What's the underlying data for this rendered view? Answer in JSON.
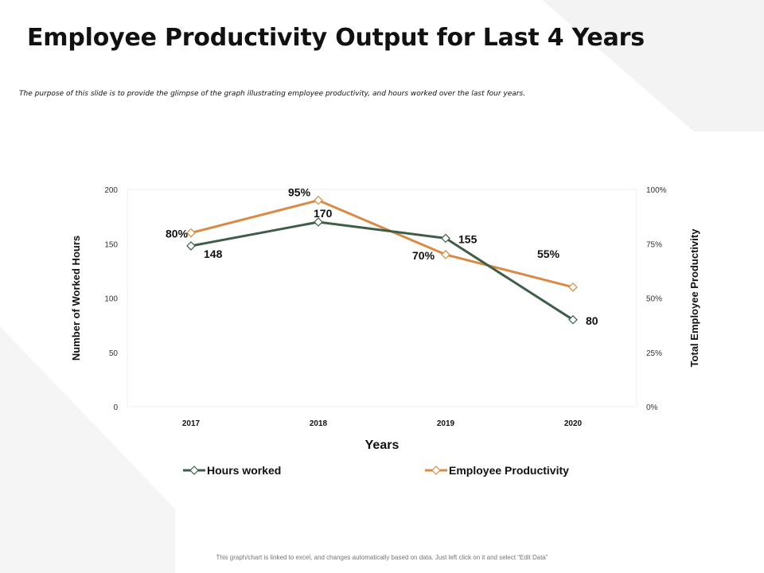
{
  "slide": {
    "title": "Employee Productivity Output for Last 4 Years",
    "subtitle": "The purpose of this slide is to provide the glimpse of the graph illustrating employee productivity, and hours worked over the last four years.",
    "footer_note": "This graph/chart is linked to excel, and changes automatically based on data. Just left click on it and select “Edit Data”"
  },
  "chart_data": {
    "type": "line",
    "categories": [
      "2017",
      "2018",
      "2019",
      "2020"
    ],
    "xlabel": "Years",
    "ylabel": "Number of Worked Hours",
    "y2label": "Total Employee Productivity",
    "ylim": [
      0,
      200
    ],
    "y2lim": [
      0,
      100
    ],
    "y_ticks": [
      {
        "value": 200,
        "label": "200"
      },
      {
        "value": 150,
        "label": "150"
      },
      {
        "value": 100,
        "label": "100"
      },
      {
        "value": 50,
        "label": "50"
      },
      {
        "value": 0,
        "label": "0"
      }
    ],
    "y2_ticks": [
      {
        "value": 100,
        "label": "100%"
      },
      {
        "value": 75,
        "label": "75%"
      },
      {
        "value": 50,
        "label": "50%"
      },
      {
        "value": 25,
        "label": "25%"
      },
      {
        "value": 0,
        "label": "0%"
      }
    ],
    "legend_placement": "bottom",
    "series": [
      {
        "name": "Hours worked",
        "axis": "left",
        "color": "#3f5e47",
        "values": [
          148,
          170,
          155,
          80
        ],
        "labels": [
          "148",
          "170",
          "155",
          "80"
        ]
      },
      {
        "name": "Employee Productivity",
        "axis": "right",
        "color": "#d98b45",
        "values": [
          80,
          95,
          70,
          55
        ],
        "labels": [
          "80%",
          "95%",
          "70%",
          "55%"
        ]
      }
    ]
  }
}
